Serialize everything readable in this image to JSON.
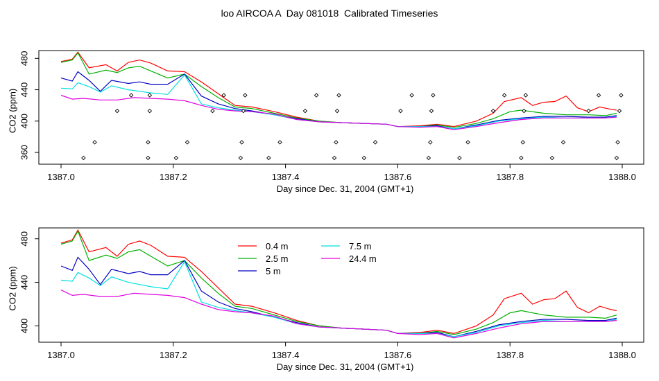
{
  "title": "loo AIRCOA A  Day 081018  Calibrated Timeseries",
  "chart_data": [
    {
      "type": "line",
      "title": "",
      "xlabel": "Day since Dec. 31, 2004 (GMT+1)",
      "ylabel": "CO2 (ppm)",
      "xlim": [
        1387.0,
        1388.0
      ],
      "ylim": [
        345,
        490
      ],
      "x_ticks": [
        "1387.0",
        "1387.2",
        "1387.4",
        "1387.6",
        "1387.8",
        "1388.0"
      ],
      "x_tick_values": [
        1387.0,
        1387.2,
        1387.4,
        1387.6,
        1387.8,
        1388.0
      ],
      "y_ticks": [
        "360",
        "400",
        "440",
        "480"
      ],
      "y_tick_values": [
        360,
        400,
        440,
        480
      ],
      "grid": false,
      "legend": null,
      "series": [
        {
          "color": "#ff0000",
          "x": [
            1387.0,
            1387.02,
            1387.03,
            1387.05,
            1387.08,
            1387.1,
            1387.12,
            1387.14,
            1387.16,
            1387.19,
            1387.22,
            1387.25,
            1387.28,
            1387.31,
            1387.34,
            1387.38,
            1387.42,
            1387.46,
            1387.5,
            1387.54,
            1387.58,
            1387.6,
            1387.64,
            1387.67,
            1387.7,
            1387.74,
            1387.77,
            1387.79,
            1387.82,
            1387.84,
            1387.86,
            1387.88,
            1387.9,
            1387.92,
            1387.94,
            1387.96,
            1387.98,
            1387.99
          ],
          "y": [
            476,
            479,
            488,
            468,
            472,
            464,
            475,
            478,
            474,
            464,
            463,
            450,
            435,
            420,
            418,
            412,
            405,
            400,
            398,
            397,
            396,
            393,
            394,
            396,
            393,
            400,
            410,
            425,
            430,
            420,
            424,
            425,
            432,
            417,
            412,
            418,
            415,
            414
          ]
        },
        {
          "color": "#00b000",
          "x": [
            1387.0,
            1387.02,
            1387.03,
            1387.05,
            1387.08,
            1387.1,
            1387.12,
            1387.14,
            1387.16,
            1387.19,
            1387.22,
            1387.25,
            1387.28,
            1387.31,
            1387.34,
            1387.38,
            1387.42,
            1387.46,
            1387.5,
            1387.54,
            1387.58,
            1387.6,
            1387.64,
            1387.67,
            1387.7,
            1387.74,
            1387.77,
            1387.8,
            1387.82,
            1387.86,
            1387.9,
            1387.94,
            1387.97,
            1387.99
          ],
          "y": [
            475,
            478,
            487,
            460,
            465,
            462,
            468,
            470,
            464,
            455,
            460,
            444,
            430,
            418,
            416,
            410,
            404,
            400,
            398,
            397,
            396,
            393,
            393,
            395,
            392,
            397,
            403,
            412,
            414,
            410,
            408,
            408,
            407,
            410
          ]
        },
        {
          "color": "#0000c0",
          "x": [
            1387.0,
            1387.02,
            1387.03,
            1387.05,
            1387.07,
            1387.09,
            1387.12,
            1387.14,
            1387.16,
            1387.19,
            1387.22,
            1387.25,
            1387.28,
            1387.31,
            1387.34,
            1387.38,
            1387.42,
            1387.46,
            1387.5,
            1387.54,
            1387.58,
            1387.6,
            1387.64,
            1387.67,
            1387.7,
            1387.74,
            1387.78,
            1387.82,
            1387.86,
            1387.9,
            1387.94,
            1387.97,
            1387.99
          ],
          "y": [
            455,
            451,
            463,
            452,
            438,
            452,
            448,
            450,
            447,
            447,
            460,
            432,
            422,
            416,
            413,
            408,
            403,
            399,
            398,
            397,
            396,
            393,
            393,
            394,
            390,
            395,
            401,
            404,
            406,
            406,
            405,
            405,
            407
          ]
        },
        {
          "color": "#00e0e0",
          "x": [
            1387.0,
            1387.02,
            1387.03,
            1387.05,
            1387.07,
            1387.09,
            1387.12,
            1387.14,
            1387.16,
            1387.19,
            1387.22,
            1387.25,
            1387.28,
            1387.31,
            1387.34,
            1387.38,
            1387.42,
            1387.46,
            1387.5,
            1387.54,
            1387.58,
            1387.6,
            1387.64,
            1387.67,
            1387.7,
            1387.74,
            1387.78,
            1387.82,
            1387.86,
            1387.9,
            1387.94,
            1387.97,
            1387.99
          ],
          "y": [
            442,
            441,
            449,
            444,
            437,
            445,
            440,
            438,
            436,
            434,
            459,
            422,
            417,
            414,
            412,
            408,
            402,
            399,
            398,
            397,
            396,
            393,
            393,
            393,
            390,
            394,
            400,
            403,
            405,
            404,
            404,
            404,
            406
          ]
        },
        {
          "color": "#e000e0",
          "x": [
            1387.0,
            1387.02,
            1387.04,
            1387.07,
            1387.1,
            1387.13,
            1387.16,
            1387.19,
            1387.22,
            1387.25,
            1387.28,
            1387.31,
            1387.34,
            1387.38,
            1387.42,
            1387.46,
            1387.5,
            1387.54,
            1387.58,
            1387.6,
            1387.64,
            1387.67,
            1387.7,
            1387.74,
            1387.78,
            1387.82,
            1387.86,
            1387.9,
            1387.94,
            1387.97,
            1387.99
          ],
          "y": [
            433,
            428,
            429,
            427,
            427,
            430,
            429,
            428,
            426,
            420,
            415,
            413,
            412,
            409,
            402,
            399,
            398,
            397,
            396,
            393,
            392,
            393,
            389,
            393,
            398,
            402,
            404,
            404,
            404,
            404,
            405
          ]
        }
      ],
      "scatter_points": {
        "marker": "open-diamond",
        "x": [
          1387.04,
          1387.06,
          1387.1,
          1387.125,
          1387.155,
          1387.155,
          1387.158,
          1387.158,
          1387.205,
          1387.225,
          1387.27,
          1387.29,
          1387.32,
          1387.322,
          1387.325,
          1387.328,
          1387.37,
          1387.39,
          1387.435,
          1387.455,
          1387.487,
          1387.49,
          1387.492,
          1387.495,
          1387.54,
          1387.56,
          1387.605,
          1387.625,
          1387.655,
          1387.658,
          1387.66,
          1387.663,
          1387.71,
          1387.725,
          1387.77,
          1387.79,
          1387.82,
          1387.823,
          1387.825,
          1387.828,
          1387.875,
          1387.895,
          1387.94,
          1387.958,
          1387.99,
          1387.992,
          1387.995,
          1387.998
        ],
        "y": [
          353,
          373,
          413,
          433,
          353,
          373,
          413,
          433,
          353,
          373,
          413,
          433,
          353,
          373,
          413,
          433,
          353,
          373,
          413,
          433,
          353,
          373,
          413,
          433,
          353,
          373,
          413,
          433,
          353,
          373,
          413,
          433,
          353,
          373,
          413,
          433,
          353,
          373,
          413,
          433,
          353,
          373,
          413,
          433,
          353,
          373,
          413,
          433
        ]
      }
    },
    {
      "type": "line",
      "title": "",
      "xlabel": "Day since Dec. 31, 2004 (GMT+1)",
      "ylabel": "CO2 (ppm)",
      "xlim": [
        1387.0,
        1388.0
      ],
      "ylim": [
        385,
        490
      ],
      "x_ticks": [
        "1387.0",
        "1387.2",
        "1387.4",
        "1387.6",
        "1387.8",
        "1388.0"
      ],
      "x_tick_values": [
        1387.0,
        1387.2,
        1387.4,
        1387.6,
        1387.8,
        1388.0
      ],
      "y_ticks": [
        "400",
        "440",
        "480"
      ],
      "y_tick_values": [
        400,
        440,
        480
      ],
      "grid": false,
      "legend": "top-center",
      "series": [
        {
          "name": "0.4 m",
          "color": "#ff0000",
          "x": [
            1387.0,
            1387.02,
            1387.03,
            1387.05,
            1387.08,
            1387.1,
            1387.12,
            1387.14,
            1387.16,
            1387.19,
            1387.22,
            1387.25,
            1387.28,
            1387.31,
            1387.34,
            1387.38,
            1387.42,
            1387.46,
            1387.5,
            1387.54,
            1387.58,
            1387.6,
            1387.64,
            1387.67,
            1387.7,
            1387.74,
            1387.77,
            1387.79,
            1387.82,
            1387.84,
            1387.86,
            1387.88,
            1387.9,
            1387.92,
            1387.94,
            1387.96,
            1387.98,
            1387.99
          ],
          "y": [
            476,
            479,
            488,
            468,
            472,
            464,
            475,
            478,
            474,
            464,
            463,
            450,
            435,
            420,
            418,
            412,
            405,
            400,
            398,
            397,
            396,
            393,
            394,
            396,
            393,
            400,
            410,
            425,
            430,
            420,
            424,
            425,
            432,
            417,
            412,
            418,
            415,
            414
          ]
        },
        {
          "name": "2.5 m",
          "color": "#00b000",
          "x": [
            1387.0,
            1387.02,
            1387.03,
            1387.05,
            1387.08,
            1387.1,
            1387.12,
            1387.14,
            1387.16,
            1387.19,
            1387.22,
            1387.25,
            1387.28,
            1387.31,
            1387.34,
            1387.38,
            1387.42,
            1387.46,
            1387.5,
            1387.54,
            1387.58,
            1387.6,
            1387.64,
            1387.67,
            1387.7,
            1387.74,
            1387.77,
            1387.8,
            1387.82,
            1387.86,
            1387.9,
            1387.94,
            1387.97,
            1387.99
          ],
          "y": [
            475,
            478,
            487,
            460,
            465,
            462,
            468,
            470,
            464,
            455,
            460,
            444,
            430,
            418,
            416,
            410,
            404,
            400,
            398,
            397,
            396,
            393,
            393,
            395,
            392,
            397,
            403,
            412,
            414,
            410,
            408,
            408,
            407,
            410
          ]
        },
        {
          "name": "5 m",
          "color": "#0000c0",
          "x": [
            1387.0,
            1387.02,
            1387.03,
            1387.05,
            1387.07,
            1387.09,
            1387.12,
            1387.14,
            1387.16,
            1387.19,
            1387.22,
            1387.25,
            1387.28,
            1387.31,
            1387.34,
            1387.38,
            1387.42,
            1387.46,
            1387.5,
            1387.54,
            1387.58,
            1387.6,
            1387.64,
            1387.67,
            1387.7,
            1387.74,
            1387.78,
            1387.82,
            1387.86,
            1387.9,
            1387.94,
            1387.97,
            1387.99
          ],
          "y": [
            455,
            451,
            463,
            452,
            438,
            452,
            448,
            450,
            447,
            447,
            460,
            432,
            422,
            416,
            413,
            408,
            403,
            399,
            398,
            397,
            396,
            393,
            393,
            394,
            390,
            395,
            401,
            404,
            406,
            406,
            405,
            405,
            407
          ]
        },
        {
          "name": "7.5 m",
          "color": "#00e0e0",
          "x": [
            1387.0,
            1387.02,
            1387.03,
            1387.05,
            1387.07,
            1387.09,
            1387.12,
            1387.14,
            1387.16,
            1387.19,
            1387.22,
            1387.25,
            1387.28,
            1387.31,
            1387.34,
            1387.38,
            1387.42,
            1387.46,
            1387.5,
            1387.54,
            1387.58,
            1387.6,
            1387.64,
            1387.67,
            1387.7,
            1387.74,
            1387.78,
            1387.82,
            1387.86,
            1387.9,
            1387.94,
            1387.97,
            1387.99
          ],
          "y": [
            442,
            441,
            449,
            444,
            437,
            445,
            440,
            438,
            436,
            434,
            459,
            422,
            417,
            414,
            412,
            408,
            402,
            399,
            398,
            397,
            396,
            393,
            393,
            393,
            390,
            394,
            400,
            403,
            405,
            404,
            404,
            404,
            406
          ]
        },
        {
          "name": "24.4 m",
          "color": "#e000e0",
          "x": [
            1387.0,
            1387.02,
            1387.04,
            1387.07,
            1387.1,
            1387.13,
            1387.16,
            1387.19,
            1387.22,
            1387.25,
            1387.28,
            1387.31,
            1387.34,
            1387.38,
            1387.42,
            1387.46,
            1387.5,
            1387.54,
            1387.58,
            1387.6,
            1387.64,
            1387.67,
            1387.7,
            1387.74,
            1387.78,
            1387.82,
            1387.86,
            1387.9,
            1387.94,
            1387.97,
            1387.99
          ],
          "y": [
            433,
            428,
            429,
            427,
            427,
            430,
            429,
            428,
            426,
            420,
            415,
            413,
            412,
            409,
            402,
            399,
            398,
            397,
            396,
            393,
            392,
            393,
            389,
            393,
            398,
            402,
            404,
            404,
            404,
            404,
            405
          ]
        }
      ]
    }
  ]
}
